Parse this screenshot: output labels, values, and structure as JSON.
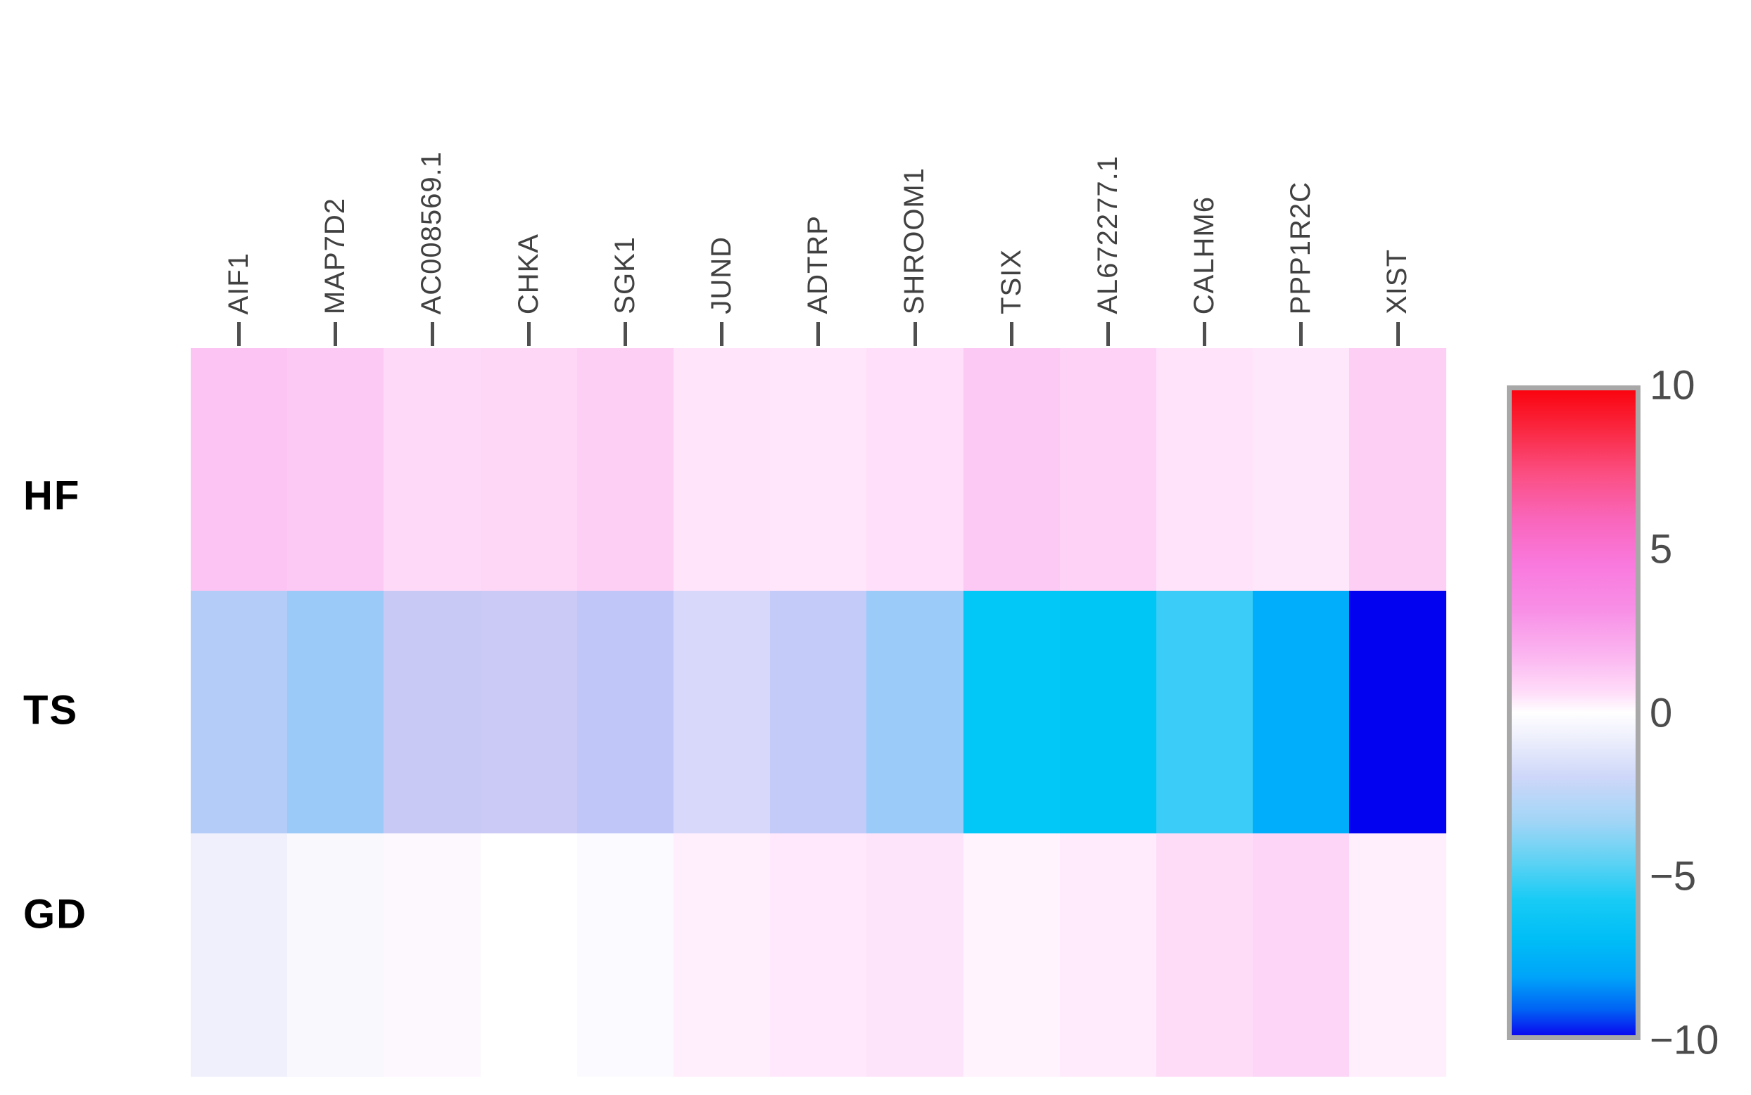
{
  "figure": {
    "background": "#ffffff"
  },
  "chart_data": {
    "type": "heatmap",
    "title": "",
    "columns": [
      "AIF1",
      "MAP7D2",
      "AC008569.1",
      "CHKA",
      "SGK1",
      "JUND",
      "ADTRP",
      "SHROOM1",
      "TSIX",
      "AL672277.1",
      "CALHM6",
      "PPP1R2C",
      "XIST"
    ],
    "rows": [
      "HF",
      "TS",
      "GD"
    ],
    "series": [
      {
        "name": "HF",
        "values": [
          2.3,
          2.2,
          1.4,
          1.5,
          1.8,
          1.0,
          0.9,
          1.2,
          2.1,
          1.7,
          1.0,
          0.9,
          1.8
        ]
      },
      {
        "name": "TS",
        "values": [
          -2.9,
          -3.5,
          -2.4,
          -2.3,
          -2.6,
          -1.9,
          -2.5,
          -3.5,
          -6.5,
          -6.6,
          -6.0,
          -7.6,
          -9.9
        ]
      },
      {
        "name": "GD",
        "values": [
          -0.6,
          -0.2,
          0.1,
          0.0,
          0.1,
          0.7,
          1.0,
          1.2,
          0.5,
          0.9,
          1.5,
          1.7,
          0.8
        ]
      }
    ],
    "cell_colors": [
      [
        "#fbc4f3",
        "#fcc9f4",
        "#fedaf8",
        "#fed7f7",
        "#fdcff5",
        "#ffe4fa",
        "#ffe6fb",
        "#ffdff9",
        "#fcc8f4",
        "#fdd2f6",
        "#ffe3fa",
        "#ffe7fb",
        "#fdcff5"
      ],
      [
        "#b4cdf8",
        "#9bcaf8",
        "#c9c9f6",
        "#cbcaf7",
        "#c0c6f7",
        "#d8d8fb",
        "#c5cbf8",
        "#9bccf9",
        "#01c8f6",
        "#00c6f5",
        "#3bcdf8",
        "#00aefb",
        "#0202f0"
      ],
      [
        "#eff0fb",
        "#f8f8fd",
        "#fdf8fe",
        "#ffffff",
        "#fbfafe",
        "#ffeffc",
        "#ffe8fb",
        "#fee4fa",
        "#fff4fd",
        "#ffebfc",
        "#fedcf8",
        "#fdd6f7",
        "#ffeefc"
      ]
    ],
    "grid": false,
    "legend_position": "right",
    "colorbar": {
      "range": [
        -10,
        10
      ],
      "tick_labels": [
        "10",
        "5",
        "0",
        "−5",
        "−10"
      ],
      "tick_values": [
        10,
        5,
        0,
        -5,
        -10
      ],
      "border_color": "#a8a8a8",
      "gradient_stops": [
        [
          0,
          "#fa040f"
        ],
        [
          6,
          "#fa2740"
        ],
        [
          13,
          "#fb4f83"
        ],
        [
          20,
          "#f966bb"
        ],
        [
          27,
          "#f979dd"
        ],
        [
          34,
          "#f88fe6"
        ],
        [
          41,
          "#fbb5f0"
        ],
        [
          47,
          "#ffdef9"
        ],
        [
          50,
          "#ffffff"
        ],
        [
          54,
          "#edeffc"
        ],
        [
          60,
          "#ced7f9"
        ],
        [
          67,
          "#a0d5f6"
        ],
        [
          73,
          "#5fd2f4"
        ],
        [
          79,
          "#18cbf5"
        ],
        [
          85,
          "#00bef6"
        ],
        [
          91,
          "#00a4f9"
        ],
        [
          96,
          "#0063f4"
        ],
        [
          100,
          "#0a0af0"
        ]
      ]
    },
    "style_colors": {
      "axis_tick": "#4f4f4f",
      "column_label": "#414141",
      "row_label": "#000000",
      "colorbar_label": "#4c4c4c"
    }
  }
}
